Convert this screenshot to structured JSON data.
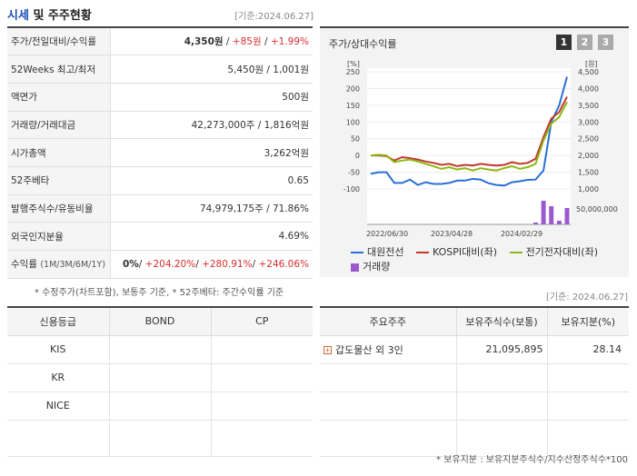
{
  "header": {
    "title_hl": "시세",
    "title_rest": " 및 주주현황",
    "base_date": "[기준:2024.06.27]"
  },
  "info": [
    {
      "label": "주가/전일대비/수익률"
    },
    {
      "label": "52Weeks 최고/최저",
      "value": "5,450원 / 1,001원"
    },
    {
      "label": "액면가",
      "value": "500원"
    },
    {
      "label": "거래량/거래대금",
      "value": "42,273,000주 / 1,816억원"
    },
    {
      "label": "시가총액",
      "value": "3,262억원"
    },
    {
      "label": "52주베타",
      "value": "0.65"
    },
    {
      "label": "발행주식수/유동비율",
      "value": "74,979,175주 / 71.86%"
    },
    {
      "label": "외국인지분율",
      "value": "4.69%"
    }
  ],
  "price": {
    "value": "4,350원",
    "sep1": " / ",
    "change": "+85원",
    "sep2": " / ",
    "rate": "+1.99%"
  },
  "returns": {
    "label": "수익률",
    "periods": "(1M/3M/6M/1Y)",
    "m1": "0%",
    "m3": "+204.20%",
    "m6": "+280.91%",
    "y1": "+246.06%",
    "sep": "/ "
  },
  "note1": "* 수정주가(차트포함), 보통주 기준, * 52주베타: 주간수익률 기준",
  "chart": {
    "title": "주가/상대수익률",
    "buttons": [
      "1",
      "2",
      "3"
    ],
    "left_unit": "[%]",
    "right_unit": "[원]",
    "left_ticks": [
      "250",
      "200",
      "150",
      "100",
      "50",
      "0",
      "-50",
      "-100"
    ],
    "right_ticks": [
      "4,500",
      "4,000",
      "3,500",
      "3,000",
      "2,500",
      "2,000",
      "1,500",
      "1,000"
    ],
    "volume_tick": "50,000,000",
    "x_ticks": [
      "2022/06/30",
      "2023/04/28",
      "2024/02/29"
    ],
    "legend": {
      "s1": "대원전선",
      "s2": "KOSPI대비(좌)",
      "s3": "전기전자대비(좌)",
      "s4": "거래량"
    },
    "colors": {
      "s1": "#2b6fd6",
      "s2": "#c0392b",
      "s3": "#8db815",
      "s4": "#9b59d0"
    }
  },
  "chart_data": {
    "type": "line",
    "x_ticks": [
      "2022/06/30",
      "2023/04/28",
      "2024/02/29"
    ],
    "left_ylim": [
      -100,
      250
    ],
    "right_ylim": [
      1000,
      4500
    ],
    "series": [
      {
        "name": "대원전선",
        "axis": "right",
        "values": [
          1450,
          1500,
          1500,
          1180,
          1180,
          1280,
          1120,
          1200,
          1150,
          1150,
          1180,
          1250,
          1250,
          1300,
          1280,
          1170,
          1120,
          1100,
          1200,
          1230,
          1270,
          1280,
          1550,
          3000,
          3500,
          4350
        ]
      },
      {
        "name": "KOSPI대비(좌)",
        "axis": "left",
        "values": [
          0,
          0,
          -2,
          -15,
          -5,
          -8,
          -12,
          -18,
          -22,
          -28,
          -25,
          -32,
          -28,
          -30,
          -25,
          -28,
          -30,
          -28,
          -20,
          -25,
          -22,
          -10,
          55,
          110,
          130,
          175
        ]
      },
      {
        "name": "전기전자대비(좌)",
        "axis": "left",
        "values": [
          0,
          2,
          0,
          -20,
          -15,
          -12,
          -18,
          -25,
          -32,
          -40,
          -35,
          -42,
          -38,
          -45,
          -38,
          -42,
          -45,
          -38,
          -32,
          -40,
          -35,
          -25,
          45,
          95,
          115,
          160
        ]
      }
    ],
    "volume": {
      "name": "거래량",
      "values": [
        0,
        0,
        0,
        0,
        0,
        0,
        0,
        0,
        0,
        0,
        0,
        0,
        0,
        0,
        0,
        0,
        0,
        0,
        0,
        0,
        0,
        5000000,
        65000000,
        50000000,
        10000000,
        45000000
      ]
    }
  },
  "credit": {
    "headers": [
      "신용등급",
      "BOND",
      "CP"
    ],
    "rows": [
      [
        "KIS",
        "",
        ""
      ],
      [
        "KR",
        "",
        ""
      ],
      [
        "NICE",
        "",
        ""
      ]
    ]
  },
  "holders": {
    "base_date": "[기준: 2024.06.27]",
    "headers": [
      "주요주주",
      "보유주식수(보통)",
      "보유지분(%)"
    ],
    "rows": [
      {
        "name": "갑도물산 외 3인",
        "shares": "21,095,895",
        "ratio": "28.14"
      }
    ],
    "note": "* 보유지분 : 보유지분주식수/지수산정주식수*100"
  }
}
